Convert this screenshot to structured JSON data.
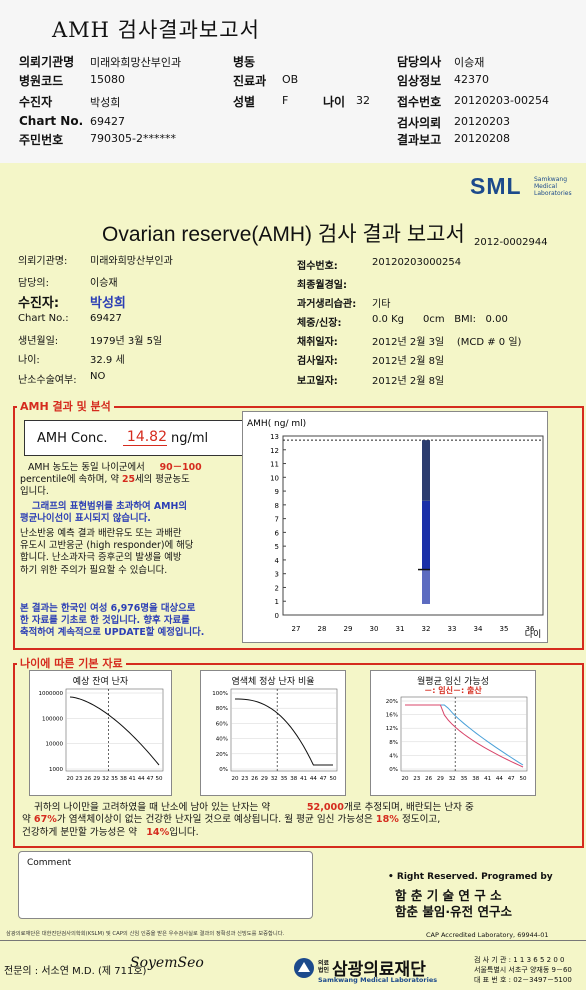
{
  "header": {
    "title": "AMH 검사결과보고서",
    "rows": [
      {
        "k1": "의뢰기관명",
        "v1": "미래와희망산부인과",
        "k2": "병동",
        "v2": "",
        "k3": "",
        "v3": "",
        "k4": "담당의사",
        "v4": "이승재"
      },
      {
        "k1": "병원코드",
        "v1": "15080",
        "k2": "진료과",
        "v2": "OB",
        "k3": "",
        "v3": "",
        "k4": "임상정보",
        "v4": "42370"
      },
      {
        "k1": "수진자",
        "v1": "박성희",
        "k2": "성별",
        "v2": "F",
        "k3": "나이",
        "v3": "32",
        "k4": "접수번호",
        "v4": "20120203-00254"
      },
      {
        "k1": "Chart No.",
        "v1": "69427",
        "k2": "",
        "v2": "",
        "k3": "",
        "v3": "",
        "k4": "검사의뢰",
        "v4": "20120203"
      },
      {
        "k1": "주민번호",
        "v1": "790305-2******",
        "k2": "",
        "v2": "",
        "k3": "",
        "v3": "",
        "k4": "결과보고",
        "v4": "20120208"
      }
    ]
  },
  "brand": {
    "logo": "SML",
    "sub1": "Samkwang",
    "sub2": "Medical",
    "sub3": "Laboratories"
  },
  "report": {
    "title": "Ovarian reserve(AMH) 검사 결과 보고서",
    "number": "2012-0002944",
    "left": [
      {
        "label": "의뢰기관명:",
        "value": "미래와희망산부인과"
      },
      {
        "label": "담당의:",
        "value": "이승재"
      },
      {
        "label": "수진자:",
        "value": "박성희"
      },
      {
        "label": "Chart No.:",
        "value": "69427"
      },
      {
        "label": "생년월일:",
        "value": "1979년 3월 5일"
      },
      {
        "label": "나이:",
        "value": "32.9 세"
      },
      {
        "label": "난소수술여부:",
        "value": "NO"
      }
    ],
    "right": [
      {
        "label": "접수번호:",
        "value": "20120203000254"
      },
      {
        "label": "최종월경일:",
        "value": ""
      },
      {
        "label": "과거생리습관:",
        "value": "기타"
      },
      {
        "label": "체중/신장:",
        "value": "0.0 Kg      0cm   BMI:   0.00"
      },
      {
        "label": "채취일자:",
        "value": "2012년 2월 3일    (MCD # 0 일)"
      },
      {
        "label": "검사일자:",
        "value": "2012년 2월 8일"
      },
      {
        "label": "보고일자:",
        "value": "2012년 2월 8일"
      }
    ]
  },
  "amh": {
    "section": "AMH 결과 및 분석",
    "conc_label": "AMH Conc.",
    "conc_value": "14.82",
    "conc_unit": "ng/ml",
    "p1a": "AMH 농도는 동일 나이군에서",
    "p1b": "90－100",
    "p1c": "percentile에 속하며, 약",
    "p1d": "25",
    "p1e": "세의 평균농도",
    "p1f": "입니다.",
    "p2a": "그래프의 표현범위를 초과하여 AMH의",
    "p2b": "평균나이선이 표시되지 않습니다.",
    "p3a": "난소반응 예측 결과 배란유도 또는 과배란",
    "p3b": "유도시 고반응군 (high responder)에 해당",
    "p3c": "합니다. 난소과자극 증후군의 발생을 예방",
    "p3d": "하기 위한 주의가 필요할 수 있습니다.",
    "p4a": "본 결과는 한국인 여성 6,976명을 대상으로",
    "p4b": "한 자료를 기초로 한 것입니다. 향후 자료를",
    "p4c": "축적하여 계속적으로 UPDATE할 예정입니다."
  },
  "chart_data": {
    "type": "bar",
    "ylabel": "AMH( ng/ ml)",
    "xlabel": "나이",
    "x": [
      27,
      28,
      29,
      30,
      31,
      32,
      33,
      34,
      35,
      36
    ],
    "ylim": [
      0,
      13
    ],
    "yticks": [
      0,
      1,
      2,
      3,
      4,
      5,
      6,
      7,
      8,
      9,
      10,
      11,
      12,
      13
    ],
    "bar_age": 32,
    "bar_segments": [
      {
        "from": 0.8,
        "to": 3.3,
        "color": "#5c6bc0"
      },
      {
        "from": 3.3,
        "to": 8.3,
        "color": "#1a2fa8"
      },
      {
        "from": 8.3,
        "to": 12.7,
        "color": "#2b3c6e"
      }
    ],
    "marker": 3.3,
    "dashed": 12.7
  },
  "ages": {
    "section": "나이에 따른 기본 자료",
    "c1": {
      "title": "예상 잔여 난자",
      "yticks": [
        "1000000",
        "100000",
        "10000",
        "1000"
      ],
      "x": [
        "20",
        "23",
        "26",
        "29",
        "32",
        "35",
        "38",
        "41",
        "44",
        "47",
        "50"
      ]
    },
    "c2": {
      "title": "염색체 정상 난자 비율",
      "yticks": [
        "100%",
        "80%",
        "60%",
        "40%",
        "20%",
        "0%"
      ],
      "x": [
        "20",
        "23",
        "26",
        "29",
        "32",
        "35",
        "38",
        "41",
        "44",
        "47",
        "50"
      ]
    },
    "c3": {
      "title": "월평균 임신 가능성",
      "legend": "－: 임신－: 출산",
      "yticks": [
        "20%",
        "16%",
        "12%",
        "8%",
        "4%",
        "0%"
      ],
      "x": [
        "20",
        "23",
        "26",
        "29",
        "32",
        "35",
        "38",
        "41",
        "44",
        "47",
        "50"
      ]
    },
    "s1a": "귀하의 나이만을 고려하였을 때 난소에 남아 있는 난자는 약",
    "s1b": "52,000",
    "s1c": "개로 추정되며, 배란되는 난자 중",
    "s2a": "약",
    "s2b": "67%",
    "s2c": "가 염색체이상이 없는 건강한 난자일 것으로 예상됩니다. 월 평균 임신 가능성은",
    "s2d": "18%",
    "s2e": "정도이고,",
    "s3a": "건강하게 분만할 가능성은 약",
    "s3b": "14%",
    "s3c": "입니다."
  },
  "footer": {
    "comment": "Comment",
    "rights": "• Right Reserved. Programed by",
    "inst1": "함 춘  기 술  연 구 소",
    "inst2": "함춘 불임·유전 연구소",
    "note": "삼광의료재단은 대한진단검사의학회(KSLM) 및 CAP의 신임 인증을 받은 우수검사실로 결과의 정확성과 신빙도를 보증합니다.",
    "cap": "CAP  Accredited  Laboratory,  69944-01",
    "doctor": "전문의 : 서소연 M.D. (제 711호)",
    "sign": "SoyemSeo",
    "org_small": "의료 법인",
    "org": "삼광의료재단",
    "org_en": "Samkwang Medical Laboratories",
    "addr1": "검 사 기 관 : 1 1 3 6 5 2 0 0",
    "addr2": "서울특별시 서초구 양재동 9－60",
    "addr3": "대 표 번 호 : 02－3497－5100"
  }
}
